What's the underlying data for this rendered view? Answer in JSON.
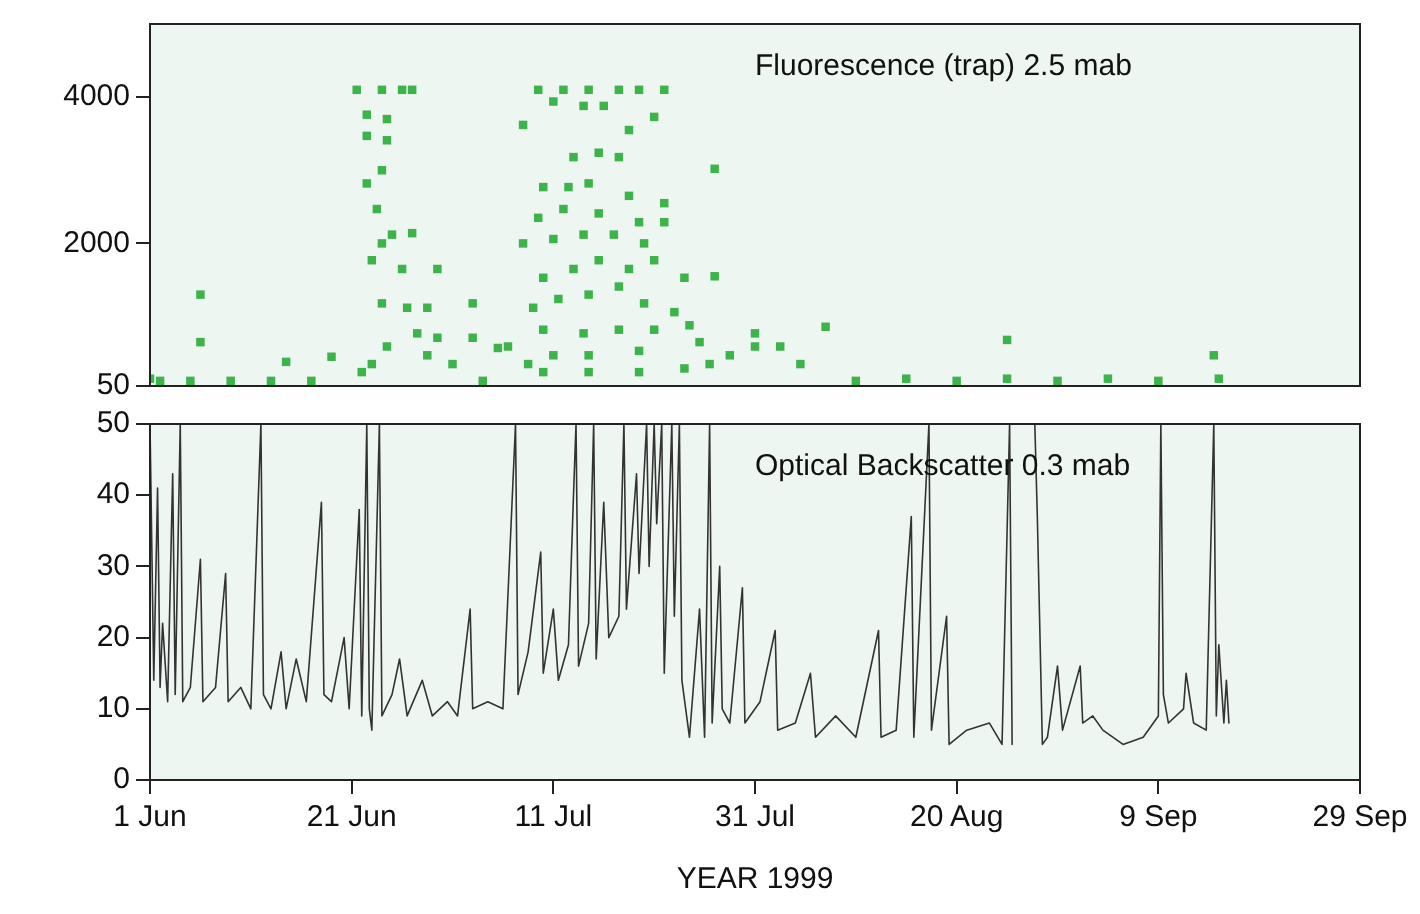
{
  "chart_data": [
    {
      "type": "scatter",
      "annotations": [
        "Fluorescence (trap) 2.5 mab"
      ],
      "xlim": [
        "1999-06-01",
        "1999-09-29"
      ],
      "xticks": [
        {
          "value": "1999-06-01",
          "label": null
        },
        {
          "value": "1999-06-21",
          "label": null
        },
        {
          "value": "1999-07-11",
          "label": null
        },
        {
          "value": "1999-07-31",
          "label": null
        },
        {
          "value": "1999-08-20",
          "label": null
        },
        {
          "value": "1999-09-09",
          "label": null
        },
        {
          "value": "1999-09-29",
          "label": null
        }
      ],
      "ylim": [
        50,
        5000
      ],
      "yticks": [
        50,
        2000,
        4000
      ],
      "tick_labels": "y",
      "grid": false,
      "legend": false,
      "marker": "square",
      "series": [
        {
          "color": "#3cb44a",
          "x": [
            "1999-06-01",
            "1999-06-02",
            "1999-06-05",
            "1999-06-06",
            "1999-06-06",
            "1999-06-09",
            "1999-06-13",
            "1999-06-14T12:00",
            "1999-06-17",
            "1999-06-19",
            "1999-06-21T12:00",
            "1999-06-24",
            "1999-06-26",
            "1999-06-27",
            "1999-06-22T12:00",
            "1999-06-24T12:00",
            "1999-06-22T12:00",
            "1999-06-24T12:00",
            "1999-06-22T12:00",
            "1999-06-24",
            "1999-06-23T12:00",
            "1999-06-24",
            "1999-06-25",
            "1999-06-23",
            "1999-06-26",
            "1999-06-27",
            "1999-06-29T12:00",
            "1999-06-24",
            "1999-06-26T12:00",
            "1999-06-28T12:00",
            "1999-06-27T12:00",
            "1999-06-29T12:00",
            "1999-06-24T12:00",
            "1999-06-28T12:00",
            "1999-07-01",
            "1999-06-23",
            "1999-06-22",
            "1999-07-03",
            "1999-07-03",
            "1999-07-04",
            "1999-07-05T12:00",
            "1999-07-09T12:00",
            "1999-07-12",
            "1999-07-14T12:00",
            "1999-07-17T12:00",
            "1999-07-19T12:00",
            "1999-07-22",
            "1999-07-08",
            "1999-07-11",
            "1999-07-14",
            "1999-07-16",
            "1999-07-18T12:00",
            "1999-07-21",
            "1999-07-13",
            "1999-07-15T12:00",
            "1999-07-17T12:00",
            "1999-07-10",
            "1999-07-12T12:00",
            "1999-07-14T12:00",
            "1999-07-18T12:00",
            "1999-07-09T12:00",
            "1999-07-12",
            "1999-07-15T12:00",
            "1999-07-19T12:00",
            "1999-07-08",
            "1999-07-11",
            "1999-07-14",
            "1999-07-17",
            "1999-07-20",
            "1999-07-22",
            "1999-07-10",
            "1999-07-13",
            "1999-07-15T12:00",
            "1999-07-18T12:00",
            "1999-07-21",
            "1999-07-24",
            "1999-07-09",
            "1999-07-11T12:00",
            "1999-07-14T12:00",
            "1999-07-17T12:00",
            "1999-07-20",
            "1999-07-23",
            "1999-07-10",
            "1999-07-14",
            "1999-07-17T12:00",
            "1999-07-21",
            "1999-07-24T12:00",
            "1999-07-11",
            "1999-07-14T12:00",
            "1999-07-19T12:00",
            "1999-07-25T12:00",
            "1999-07-06T12:00",
            "1999-07-08T12:00",
            "1999-07-10",
            "1999-07-14T12:00",
            "1999-07-19T12:00",
            "1999-07-24",
            "1999-07-26T12:00",
            "1999-07-28T12:00",
            "1999-07-31",
            "1999-08-02T12:00",
            "1999-08-04T12:00",
            "1999-07-22",
            "1999-07-27",
            "1999-07-27",
            "1999-07-31",
            "1999-08-07",
            "1999-08-10",
            "1999-08-15",
            "1999-08-20",
            "1999-08-25",
            "1999-08-25",
            "1999-08-30",
            "1999-09-04",
            "1999-09-09",
            "1999-09-14T12:00",
            "1999-09-15"
          ],
          "values": [
            150,
            120,
            120,
            1300,
            650,
            120,
            120,
            380,
            120,
            450,
            4100,
            4100,
            4100,
            4100,
            3760,
            3700,
            3470,
            3410,
            2820,
            3000,
            2470,
            2000,
            2120,
            1770,
            1650,
            2140,
            1650,
            1180,
            1120,
            1120,
            770,
            710,
            590,
            470,
            350,
            350,
            240,
            1180,
            710,
            120,
            570,
            4100,
            4100,
            4100,
            4100,
            4100,
            4100,
            3620,
            3940,
            3880,
            3880,
            3550,
            3730,
            3180,
            3240,
            3180,
            2770,
            2770,
            2820,
            2650,
            2350,
            2470,
            2410,
            2290,
            2000,
            2060,
            2120,
            2120,
            2000,
            2290,
            1530,
            1650,
            1770,
            1650,
            1770,
            1530,
            1120,
            1240,
            1300,
            1410,
            1180,
            1060,
            820,
            770,
            820,
            820,
            880,
            470,
            470,
            530,
            650,
            590,
            350,
            240,
            240,
            240,
            290,
            350,
            470,
            590,
            590,
            350,
            2550,
            3020,
            1550,
            770,
            860,
            120,
            150,
            120,
            150,
            680,
            120,
            150,
            120,
            470,
            150
          ]
        }
      ]
    },
    {
      "type": "line",
      "annotations": [
        "Optical Backscatter 0.3 mab"
      ],
      "xlabel": "YEAR 1999",
      "xlim": [
        "1999-06-01",
        "1999-09-29"
      ],
      "xticks": [
        {
          "value": "1999-06-01",
          "label": "1 Jun"
        },
        {
          "value": "1999-06-21",
          "label": "21 Jun"
        },
        {
          "value": "1999-07-11",
          "label": "11 Jul"
        },
        {
          "value": "1999-07-31",
          "label": "31 Jul"
        },
        {
          "value": "1999-08-20",
          "label": "20 Aug"
        },
        {
          "value": "1999-09-09",
          "label": "9 Sep"
        },
        {
          "value": "1999-09-29",
          "label": "29 Sep"
        }
      ],
      "ylim": [
        0,
        50
      ],
      "yticks": [
        0,
        10,
        20,
        30,
        40,
        50
      ],
      "grid": false,
      "legend": false,
      "marker": "none",
      "line_style": "solid",
      "series": [
        {
          "color": "#333333",
          "x": [
            "1999-06-01T00:00",
            "1999-06-01T09:00",
            "1999-06-01T18:00",
            "1999-06-02T00:00",
            "1999-06-02T06:00",
            "1999-06-02T18:00",
            "1999-06-03T06:00",
            "1999-06-03T12:00",
            "1999-06-04T00:00",
            "1999-06-04T06:00",
            "1999-06-05T00:00",
            "1999-06-06T00:00",
            "1999-06-06T06:00",
            "1999-06-07T12:00",
            "1999-06-08T12:00",
            "1999-06-08T18:00",
            "1999-06-10T00:00",
            "1999-06-11T00:00",
            "1999-06-12T00:00",
            "1999-06-12T06:00",
            "1999-06-13T00:00",
            "1999-06-14T00:00",
            "1999-06-14T12:00",
            "1999-06-15T12:00",
            "1999-06-16T12:00",
            "1999-06-18T00:00",
            "1999-06-18T06:00",
            "1999-06-19T00:00",
            "1999-06-20T06:00",
            "1999-06-20T18:00",
            "1999-06-21T18:00",
            "1999-06-22T00:00",
            "1999-06-22T12:00",
            "1999-06-22T18:00",
            "1999-06-23T00:00",
            "1999-06-23T18:00",
            "1999-06-24T00:00",
            "1999-06-25T00:00",
            "1999-06-25T18:00",
            "1999-06-26T12:00",
            "1999-06-28T00:00",
            "1999-06-29T00:00",
            "1999-06-30T12:00",
            "1999-07-01T12:00",
            "1999-07-02T18:00",
            "1999-07-03T00:00",
            "1999-07-04T12:00",
            "1999-07-06T00:00",
            "1999-07-07T06:00",
            "1999-07-07T12:00",
            "1999-07-08T12:00",
            "1999-07-09T18:00",
            "1999-07-10T00:00",
            "1999-07-11T00:00",
            "1999-07-11T12:00",
            "1999-07-12T12:00",
            "1999-07-13T00:00",
            "1999-07-13T06:00",
            "1999-07-13T12:00",
            "1999-07-14T12:00",
            "1999-07-15T00:00",
            "1999-07-15T06:00",
            "1999-07-16T00:00",
            "1999-07-16T12:00",
            "1999-07-17T12:00",
            "1999-07-18T00:00",
            "1999-07-18T06:00",
            "1999-07-19T06:00",
            "1999-07-19T12:00",
            "1999-07-20T06:00",
            "1999-07-20T12:00",
            "1999-07-21T00:00",
            "1999-07-21T06:00",
            "1999-07-21T18:00",
            "1999-07-22T00:00",
            "1999-07-22T18:00",
            "1999-07-23T00:00",
            "1999-07-23T12:00",
            "1999-07-23T18:00",
            "1999-07-24T12:00",
            "1999-07-25T12:00",
            "1999-07-26T00:00",
            "1999-07-26T12:00",
            "1999-07-26T18:00",
            "1999-07-27T12:00",
            "1999-07-27T18:00",
            "1999-07-28T12:00",
            "1999-07-29T18:00",
            "1999-07-30T00:00",
            "1999-07-31T12:00",
            "1999-08-02T00:00",
            "1999-08-02T06:00",
            "1999-08-04T00:00",
            "1999-08-05T12:00",
            "1999-08-06T00:00",
            "1999-08-08T00:00",
            "1999-08-10T00:00",
            "1999-08-12T06:00",
            "1999-08-12T12:00",
            "1999-08-14T00:00",
            "1999-08-15T12:00",
            "1999-08-15T18:00",
            "1999-08-17T06:00",
            "1999-08-17T12:00",
            "1999-08-19T00:00",
            "1999-08-19T06:00",
            "1999-08-21T00:00",
            "1999-08-23T06:00",
            "1999-08-24T12:00",
            "1999-08-25T06:00",
            "1999-08-25T12:00",
            "1999-08-26T12:00",
            "1999-08-27T18:00",
            "1999-08-28T00:00",
            "1999-08-28T12:00",
            "1999-08-29T00:00",
            "1999-08-30T00:00",
            "1999-08-30T12:00",
            "1999-09-01T06:00",
            "1999-09-01T12:00",
            "1999-09-02T12:00",
            "1999-09-03T12:00",
            "1999-09-05T12:00",
            "1999-09-07T12:00",
            "1999-09-09T00:00",
            "1999-09-09T06:00",
            "1999-09-09T12:00",
            "1999-09-10T00:00",
            "1999-09-11T12:00",
            "1999-09-11T18:00",
            "1999-09-12T12:00",
            "1999-09-13T18:00",
            "1999-09-14T12:00",
            "1999-09-14T18:00",
            "1999-09-15T00:00",
            "1999-09-15T12:00",
            "1999-09-15T18:00",
            "1999-09-16T00:00"
          ],
          "values": [
            50,
            14,
            41,
            13,
            22,
            11,
            43,
            12,
            50,
            11,
            13,
            31,
            11,
            13,
            29,
            11,
            13,
            10,
            50,
            12,
            10,
            18,
            10,
            17,
            11,
            39,
            12,
            11,
            20,
            10,
            38,
            9,
            50,
            10,
            7,
            50,
            9,
            12,
            17,
            9,
            14,
            9,
            11,
            9,
            24,
            10,
            11,
            10,
            50,
            12,
            18,
            32,
            15,
            24,
            14,
            19,
            40,
            50,
            16,
            22,
            50,
            17,
            39,
            20,
            23,
            50,
            24,
            43,
            29,
            50,
            30,
            50,
            36,
            50,
            15,
            50,
            23,
            50,
            14,
            6,
            24,
            6,
            50,
            8,
            30,
            10,
            8,
            27,
            8,
            11,
            21,
            7,
            8,
            15,
            6,
            9,
            6,
            21,
            6,
            7,
            37,
            6,
            50,
            7,
            23,
            5,
            7,
            8,
            5,
            50,
            5,
            null,
            50,
            37,
            5,
            6,
            16,
            7,
            16,
            8,
            9,
            7,
            5,
            6,
            9,
            50,
            12,
            8,
            10,
            15,
            8,
            7,
            50,
            9,
            19,
            8,
            14,
            8
          ]
        }
      ]
    }
  ]
}
